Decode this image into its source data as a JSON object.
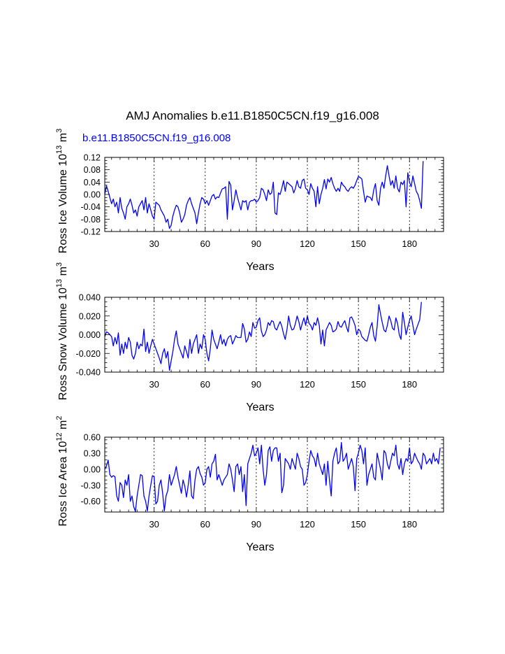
{
  "title": "AMJ Anomalies b.e11.B1850C5CN.f19_g16.008",
  "case_label": "b.e11.B1850C5CN.f19_g16.008",
  "colors": {
    "series": "#0000ff",
    "axes": "#000000"
  },
  "chart_data": [
    {
      "type": "line",
      "ylabel": "Ross Ice Volume 10^13 m^3",
      "ylabel_parts": {
        "base": "Ross Ice Volume 10",
        "exp1": "13",
        "mid": " m",
        "exp2": "3"
      },
      "xlabel": "Years",
      "xlim": [
        1,
        200
      ],
      "xticks": [
        30,
        60,
        90,
        120,
        150,
        180
      ],
      "xticklabels": [
        "30",
        "60",
        "90",
        "120",
        "150",
        "180"
      ],
      "ylim": [
        -0.12,
        0.12
      ],
      "yticks": [
        0.12,
        0.08,
        0.04,
        0.0,
        -0.04,
        -0.08,
        -0.12
      ],
      "yticklabels": [
        "0.12",
        "0.08",
        "0.04",
        "0.00",
        "-0.04",
        "-0.08",
        "-0.12"
      ],
      "grid_x": true,
      "series": [
        {
          "name": "b.e11.B1850C5CN.f19_g16.008",
          "x_start": 1,
          "x_step": 1,
          "values": [
            0.0,
            0.028,
            0.01,
            -0.01,
            -0.03,
            -0.015,
            -0.04,
            -0.025,
            -0.06,
            -0.01,
            -0.045,
            -0.06,
            -0.08,
            -0.04,
            -0.03,
            -0.015,
            -0.035,
            -0.06,
            -0.05,
            -0.07,
            -0.04,
            -0.03,
            -0.02,
            -0.05,
            -0.01,
            -0.06,
            -0.03,
            -0.05,
            -0.07,
            -0.08,
            -0.025,
            -0.03,
            -0.035,
            -0.05,
            -0.06,
            -0.07,
            -0.09,
            -0.08,
            -0.11,
            -0.1,
            -0.07,
            -0.05,
            -0.035,
            -0.04,
            -0.06,
            -0.09,
            -0.08,
            -0.065,
            -0.035,
            -0.02,
            -0.01,
            -0.03,
            -0.045,
            -0.06,
            -0.095,
            -0.06,
            -0.03,
            -0.01,
            -0.015,
            -0.03,
            -0.02,
            -0.035,
            -0.02,
            -0.005,
            0.0,
            -0.015,
            -0.008,
            -0.01,
            0.005,
            0.018,
            0.02,
            0.025,
            -0.08,
            0.042,
            0.03,
            -0.05,
            -0.02,
            0.015,
            -0.01,
            -0.03,
            -0.05,
            -0.02,
            -0.025,
            -0.02,
            -0.05,
            -0.025,
            -0.02,
            -0.02,
            -0.015,
            -0.025,
            -0.02,
            -0.01,
            0.02,
            0.015,
            0.0,
            -0.02,
            0.015,
            0.0,
            0.005,
            0.04,
            -0.06,
            -0.065,
            0.005,
            0.0,
            0.02,
            0.045,
            0.01,
            0.04,
            0.035,
            0.03,
            0.025,
            0.005,
            0.02,
            0.045,
            0.025,
            0.02,
            0.045,
            0.05,
            0.02,
            0.015,
            0.0,
            0.035,
            0.02,
            0.01,
            -0.04,
            0.025,
            -0.03,
            0.0,
            0.02,
            0.048,
            0.018,
            0.05,
            0.04,
            0.055,
            0.035,
            0.02,
            0.01,
            0.02,
            0.01,
            0.04,
            0.03,
            0.025,
            0.015,
            0.01,
            0.02,
            0.025,
            0.02,
            0.03,
            0.045,
            0.058,
            0.055,
            0.05,
            0.01,
            -0.025,
            -0.005,
            -0.008,
            -0.01,
            -0.02,
            0.015,
            0.035,
            -0.02,
            -0.035,
            0.02,
            0.04,
            0.02,
            0.06,
            0.093,
            0.06,
            0.03,
            0.045,
            0.02,
            0.06,
            0.02,
            0.008,
            0.04,
            0.032,
            0.045,
            -0.04,
            0.07,
            0.04,
            0.025,
            0.06,
            0.035,
            0.01,
            0.0,
            -0.02,
            -0.045,
            0.108
          ]
        }
      ]
    },
    {
      "type": "line",
      "ylabel": "Ross Snow Volume 10^13 m^3",
      "ylabel_parts": {
        "base": "Ross Snow Volume 10",
        "exp1": "13",
        "mid": " m",
        "exp2": "3"
      },
      "xlabel": "Years",
      "xlim": [
        1,
        200
      ],
      "xticks": [
        30,
        60,
        90,
        120,
        150,
        180
      ],
      "xticklabels": [
        "30",
        "60",
        "90",
        "120",
        "150",
        "180"
      ],
      "ylim": [
        -0.04,
        0.04
      ],
      "yticks": [
        0.04,
        0.02,
        0.0,
        -0.02,
        -0.04
      ],
      "yticklabels": [
        "0.040",
        "0.020",
        "0.000",
        "-0.020",
        "-0.040"
      ],
      "grid_x": true,
      "series": [
        {
          "name": "b.e11.B1850C5CN.f19_g16.008",
          "x_start": 1,
          "x_step": 1,
          "values": [
            -0.002,
            0.003,
            0.002,
            0.0,
            -0.002,
            -0.012,
            -0.003,
            -0.01,
            0.002,
            -0.022,
            -0.01,
            -0.02,
            -0.008,
            -0.015,
            -0.003,
            -0.008,
            -0.022,
            -0.026,
            -0.02,
            -0.008,
            -0.015,
            -0.01,
            -0.012,
            0.006,
            -0.018,
            -0.008,
            -0.02,
            -0.012,
            -0.005,
            -0.01,
            -0.015,
            -0.02,
            -0.025,
            -0.031,
            -0.02,
            -0.015,
            -0.025,
            -0.018,
            -0.038,
            -0.028,
            -0.018,
            -0.005,
            0.004,
            -0.01,
            -0.015,
            -0.02,
            -0.025,
            -0.012,
            -0.018,
            -0.025,
            -0.005,
            -0.02,
            -0.01,
            -0.005,
            0.0,
            -0.02,
            -0.01,
            -0.015,
            0.0,
            -0.005,
            -0.02,
            -0.028,
            -0.015,
            0.005,
            -0.005,
            -0.01,
            -0.015,
            -0.008,
            0.0,
            -0.01,
            -0.005,
            -0.012,
            -0.005,
            -0.002,
            -0.001,
            -0.01,
            -0.006,
            -0.001,
            -0.003,
            -0.003,
            -0.003,
            0.012,
            0.006,
            -0.008,
            -0.005,
            0.003,
            -0.002,
            0.013,
            0.007,
            0.008,
            0.015,
            0.018,
            0.004,
            -0.002,
            0.0,
            0.005,
            0.013,
            0.01,
            0.015,
            0.014,
            0.007,
            0.005,
            0.01,
            0.014,
            0.009,
            0.001,
            -0.005,
            0.005,
            0.02,
            0.01,
            0.005,
            0.006,
            0.012,
            0.02,
            0.014,
            0.005,
            0.012,
            0.018,
            0.01,
            0.02,
            0.012,
            0.01,
            0.005,
            0.013,
            0.01,
            0.018,
            0.01,
            -0.01,
            0.005,
            -0.012,
            0.005,
            0.009,
            0.013,
            0.01,
            0.003,
            0.004,
            0.006,
            0.014,
            0.009,
            0.008,
            0.012,
            0.015,
            0.008,
            0.003,
            0.018,
            0.019,
            0.015,
            0.01,
            0.0,
            0.006,
            0.004,
            -0.002,
            -0.004,
            -0.006,
            -0.007,
            0.0,
            0.008,
            0.013,
            -0.001,
            -0.007,
            0.009,
            0.032,
            0.022,
            0.013,
            0.005,
            0.003,
            0.01,
            0.02,
            0.015,
            0.007,
            0.005,
            0.018,
            0.012,
            0.0,
            -0.005,
            0.024,
            0.013,
            0.0,
            0.008,
            0.015,
            0.02,
            0.01,
            0.0,
            0.006,
            0.011,
            0.016,
            0.035
          ]
        }
      ]
    },
    {
      "type": "line",
      "ylabel": "Ross Ice Area 10^12 m^2",
      "ylabel_parts": {
        "base": "Ross Ice Area 10",
        "exp1": "12",
        "mid": " m",
        "exp2": "2"
      },
      "xlabel": "Years",
      "xlim": [
        1,
        200
      ],
      "xticks": [
        30,
        60,
        90,
        120,
        150,
        180
      ],
      "xticklabels": [
        "30",
        "60",
        "90",
        "120",
        "150",
        "180"
      ],
      "ylim": [
        -0.8,
        0.6
      ],
      "yticks": [
        0.6,
        0.3,
        0.0,
        -0.3,
        -0.6
      ],
      "yticklabels": [
        "0.60",
        "0.30",
        "0.00",
        "-0.30",
        "-0.60"
      ],
      "grid_x": true,
      "series": [
        {
          "name": "b.e11.B1850C5CN.f19_g16.008",
          "x_start": 1,
          "x_step": 1,
          "values": [
            0.0,
            0.06,
            0.17,
            -0.1,
            -0.15,
            -0.12,
            -0.14,
            -0.5,
            -0.6,
            -0.25,
            -0.3,
            -0.53,
            -0.2,
            -0.3,
            -0.1,
            -0.6,
            -0.5,
            -0.7,
            -0.79,
            -0.5,
            -0.3,
            -0.1,
            -0.12,
            -0.5,
            -0.6,
            -0.78,
            -0.5,
            -0.3,
            -0.12,
            -0.14,
            -0.65,
            -0.6,
            -0.3,
            -0.2,
            -0.45,
            -0.78,
            -0.5,
            -0.4,
            -0.1,
            -0.3,
            -0.2,
            -0.1,
            0.05,
            -0.15,
            -0.3,
            -0.45,
            -0.2,
            -0.32,
            -0.52,
            -0.3,
            -0.03,
            -0.5,
            -0.55,
            -0.2,
            0.0,
            0.05,
            -0.08,
            -0.15,
            -0.3,
            -0.25,
            0.0,
            0.05,
            -0.15,
            0.1,
            0.15,
            0.28,
            -0.2,
            -0.1,
            -0.2,
            -0.3,
            -0.2,
            -0.15,
            -0.1,
            0.1,
            0.0,
            -0.2,
            -0.42,
            0.05,
            0.1,
            -0.1,
            0.05,
            -0.42,
            -0.1,
            -0.68,
            0.1,
            0.2,
            0.3,
            0.45,
            0.25,
            0.3,
            0.4,
            0.1,
            0.45,
            0.0,
            -0.3,
            -0.1,
            0.35,
            0.42,
            0.15,
            0.35,
            0.4,
            0.4,
            0.15,
            0.3,
            -0.44,
            -0.3,
            0.2,
            0.15,
            0.1,
            0.0,
            0.2,
            0.1,
            0.0,
            0.3,
            0.2,
            0.05,
            0.0,
            -0.3,
            -0.25,
            -0.1,
            0.15,
            0.35,
            0.25,
            0.2,
            0.05,
            0.3,
            0.1,
            0.0,
            -0.1,
            0.1,
            -0.3,
            0.15,
            -0.2,
            -0.5,
            0.15,
            0.3,
            0.4,
            0.1,
            0.15,
            0.5,
            0.15,
            0.2,
            0.3,
            0.0,
            0.1,
            0.2,
            0.05,
            -0.4,
            0.2,
            0.3,
            0.45,
            0.35,
            0.1,
            0.4,
            -0.3,
            -0.1,
            0.0,
            0.1,
            -0.15,
            -0.2,
            0.3,
            0.15,
            0.0,
            -0.2,
            0.35,
            0.3,
            0.1,
            0.0,
            0.15,
            0.3,
            0.25,
            0.45,
            0.1,
            0.0,
            0.2,
            -0.1,
            0.1,
            0.2,
            0.15,
            0.4,
            0.1,
            0.15,
            0.3,
            0.22,
            0.15,
            0.1,
            0.0,
            0.3,
            0.25,
            0.1,
            0.15,
            0.2,
            0.1,
            0.3,
            0.15,
            0.2,
            0.1,
            0.4
          ]
        }
      ]
    }
  ]
}
